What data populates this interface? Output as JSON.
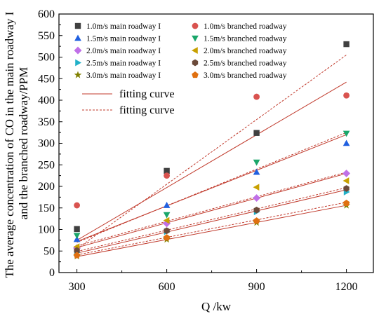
{
  "chart_data": {
    "type": "scatter",
    "xlabel": "Q /kw",
    "ylabel_lines": [
      "The average concentration of CO in the main roadway I",
      "and the branched roadway/PPM"
    ],
    "xlim": [
      240,
      1290
    ],
    "ylim": [
      0,
      600
    ],
    "x_ticks": [
      300,
      600,
      900,
      1200
    ],
    "y_ticks": [
      0,
      50,
      100,
      150,
      200,
      250,
      300,
      350,
      400,
      450,
      500,
      550,
      600
    ],
    "x": [
      300,
      600,
      900,
      1200
    ],
    "series": [
      {
        "name": "1.0m/s main roadway I",
        "marker": "square",
        "color": "#404040",
        "values": [
          101,
          236,
          324,
          530
        ]
      },
      {
        "name": "1.0m/s branched roadway",
        "marker": "circle",
        "color": "#d9534f",
        "values": [
          156,
          225,
          408,
          411
        ]
      },
      {
        "name": "1.5m/s main roadway I",
        "marker": "triangle-up",
        "color": "#2060e0",
        "values": [
          77,
          156,
          233,
          300
        ]
      },
      {
        "name": "1.5m/s branched roadway",
        "marker": "triangle-down",
        "color": "#1aa66a",
        "values": [
          86,
          134,
          256,
          323
        ]
      },
      {
        "name": "2.0m/s main roadway I",
        "marker": "diamond",
        "color": "#c070e8",
        "values": [
          57,
          114,
          173,
          230
        ]
      },
      {
        "name": "2.0m/s branched roadway",
        "marker": "triangle-left",
        "color": "#c8a000",
        "values": [
          60,
          121,
          198,
          213
        ]
      },
      {
        "name": "2.5m/s main roadway I",
        "marker": "triangle-right",
        "color": "#20b0c8",
        "values": [
          47,
          95,
          141,
          187
        ]
      },
      {
        "name": "2.5m/s branched roadway",
        "marker": "hexagon",
        "color": "#6b4a3a",
        "values": [
          51,
          97,
          145,
          195
        ]
      },
      {
        "name": "3.0m/s main roadway I",
        "marker": "star",
        "color": "#808000",
        "values": [
          38,
          77,
          116,
          156
        ]
      },
      {
        "name": "3.0m/s branched roadway",
        "marker": "pentagon",
        "color": "#e07010",
        "values": [
          40,
          81,
          120,
          161
        ]
      }
    ],
    "fit_lines": [
      {
        "style": "solid",
        "from": [
          300,
          75
        ],
        "to": [
          1200,
          442
        ]
      },
      {
        "style": "dashed",
        "from": [
          300,
          55
        ],
        "to": [
          1200,
          505
        ]
      },
      {
        "style": "solid",
        "from": [
          300,
          72
        ],
        "to": [
          1200,
          320
        ]
      },
      {
        "style": "dashed",
        "from": [
          300,
          70
        ],
        "to": [
          1200,
          325
        ]
      },
      {
        "style": "solid",
        "from": [
          300,
          58
        ],
        "to": [
          1200,
          230
        ]
      },
      {
        "style": "dashed",
        "from": [
          300,
          62
        ],
        "to": [
          1200,
          233
        ]
      },
      {
        "style": "solid",
        "from": [
          300,
          45
        ],
        "to": [
          1200,
          192
        ]
      },
      {
        "style": "dashed",
        "from": [
          300,
          49
        ],
        "to": [
          1200,
          197
        ]
      },
      {
        "style": "solid",
        "from": [
          300,
          37
        ],
        "to": [
          1200,
          156
        ]
      },
      {
        "style": "dashed",
        "from": [
          300,
          41
        ],
        "to": [
          1200,
          163
        ]
      }
    ],
    "fit_legend": [
      {
        "label": "fitting curve",
        "style": "solid"
      },
      {
        "label": "fitting curve",
        "style": "dashed"
      }
    ],
    "fit_color": "#c0392b",
    "legend_position": "top-left",
    "grid": false
  }
}
